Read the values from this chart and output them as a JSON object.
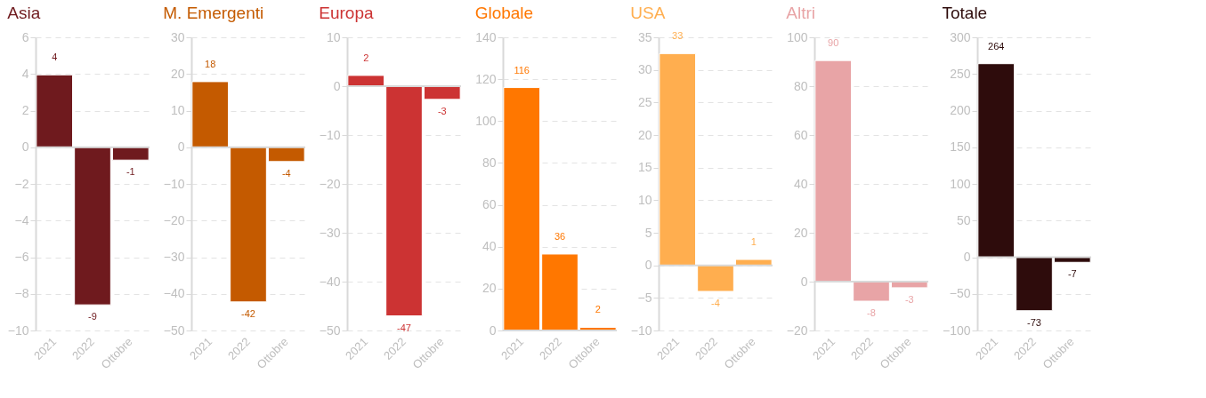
{
  "chart_data": [
    {
      "type": "bar",
      "title": "Asia",
      "categories": [
        "2021",
        "2022",
        "Ottobre"
      ],
      "values": [
        3.95,
        -8.6,
        -0.7
      ],
      "value_labels": [
        "4",
        "-9",
        "-1"
      ],
      "color": "#6f1a1e",
      "ylim": [
        -10,
        6
      ],
      "yticks": [
        -10,
        -8,
        -6,
        -4,
        -2,
        0,
        2,
        4,
        6
      ],
      "grid": "y"
    },
    {
      "type": "bar",
      "title": "M. Emergenti",
      "categories": [
        "2021",
        "2022",
        "Ottobre"
      ],
      "values": [
        17.9,
        -42.2,
        -3.9
      ],
      "value_labels": [
        "18",
        "-42",
        "-4"
      ],
      "color": "#c45a00",
      "ylim": [
        -50,
        30
      ],
      "yticks": [
        -50,
        -40,
        -30,
        -20,
        -10,
        0,
        10,
        20,
        30
      ],
      "grid": "y"
    },
    {
      "type": "bar",
      "title": "Europa",
      "categories": [
        "2021",
        "2022",
        "Ottobre"
      ],
      "values": [
        2.2,
        -47,
        -2.7
      ],
      "value_labels": [
        "2",
        "-47",
        "-3"
      ],
      "color": "#cc3333",
      "ylim": [
        -50,
        10
      ],
      "yticks": [
        -50,
        -40,
        -30,
        -20,
        -10,
        0,
        10
      ],
      "grid": "y"
    },
    {
      "type": "bar",
      "title": "Globale",
      "categories": [
        "2021",
        "2022",
        "Ottobre"
      ],
      "values": [
        116,
        36.5,
        1.5
      ],
      "value_labels": [
        "116",
        "36",
        "2"
      ],
      "color": "#ff7700",
      "ylim": [
        0,
        140
      ],
      "yticks": [
        0,
        20,
        40,
        60,
        80,
        100,
        120,
        140
      ],
      "grid": "y"
    },
    {
      "type": "bar",
      "title": "USA",
      "categories": [
        "2021",
        "2022",
        "Ottobre"
      ],
      "values": [
        32.5,
        -4,
        0.9
      ],
      "value_labels": [
        "33",
        "-4",
        "1"
      ],
      "color": "#ffae4f",
      "ylim": [
        -10,
        35
      ],
      "yticks": [
        -10,
        -5,
        0,
        5,
        10,
        15,
        20,
        25,
        30,
        35
      ],
      "grid": "y"
    },
    {
      "type": "bar",
      "title": "Altri",
      "categories": [
        "2021",
        "2022",
        "Ottobre"
      ],
      "values": [
        90.5,
        -8,
        -2.5
      ],
      "value_labels": [
        "90",
        "-8",
        "-3"
      ],
      "color": "#e8a4a6",
      "ylim": [
        -20,
        100
      ],
      "yticks": [
        -20,
        0,
        20,
        40,
        60,
        80,
        100
      ],
      "grid": "y"
    },
    {
      "type": "bar",
      "title": "Totale",
      "categories": [
        "2021",
        "2022",
        "Ottobre"
      ],
      "values": [
        264,
        -73,
        -7
      ],
      "value_labels": [
        "264",
        "-73",
        "-7"
      ],
      "color": "#2e0c0c",
      "ylim": [
        -100,
        300
      ],
      "yticks": [
        -100,
        -50,
        0,
        50,
        100,
        150,
        200,
        250,
        300
      ],
      "grid": "y"
    }
  ]
}
